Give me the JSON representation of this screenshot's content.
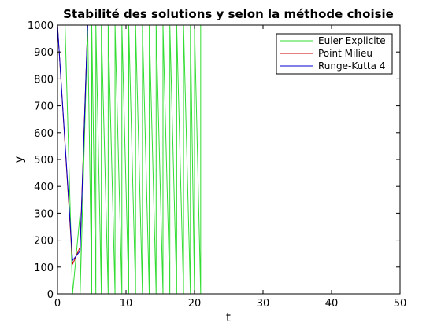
{
  "chart_data": {
    "type": "line",
    "title": "Stabilité des solutions y selon la méthode choisie",
    "xlabel": "t",
    "ylabel": "y",
    "xlim": [
      0,
      50
    ],
    "ylim": [
      0,
      1000
    ],
    "x_ticks": [
      "0",
      "10",
      "20",
      "30",
      "40",
      "50"
    ],
    "y_ticks": [
      "0",
      "100",
      "200",
      "300",
      "400",
      "500",
      "600",
      "700",
      "800",
      "900",
      "1000"
    ],
    "grid": false,
    "legend_position": "top-right",
    "series": [
      {
        "name": "Euler Explicite",
        "color": "#33dd33",
        "x": [
          0,
          1.1,
          2.2,
          3.3,
          3.3,
          4.4,
          5.0,
          5.0,
          5.6,
          5.6,
          6.4,
          6.4,
          7.4,
          7.4,
          8.4,
          8.4,
          9.4,
          9.4,
          10.4,
          10.4,
          11.4,
          11.4,
          12.4,
          12.4,
          13.4,
          13.4,
          14.4,
          14.4,
          15.4,
          15.4,
          16.4,
          16.4,
          17.4,
          17.4,
          18.4,
          18.4,
          19.4,
          19.4,
          20.0,
          20.0,
          20.9,
          20.9
        ],
        "y": [
          1000,
          1000,
          0,
          300,
          0,
          1000,
          0,
          1000,
          0,
          1000,
          0,
          1000,
          0,
          1000,
          0,
          1000,
          0,
          1000,
          0,
          1000,
          0,
          1000,
          0,
          1000,
          0,
          1000,
          0,
          1000,
          0,
          1000,
          0,
          1000,
          0,
          1000,
          0,
          1000,
          0,
          1000,
          0,
          1000,
          0,
          1000
        ]
      },
      {
        "name": "Point Milieu",
        "color": "#cc0000",
        "x": [
          0,
          2.2,
          3.3,
          4.4
        ],
        "y": [
          1000,
          110,
          175,
          1000
        ]
      },
      {
        "name": "Runge-Kutta 4",
        "color": "#0000cc",
        "x": [
          0,
          2.2,
          3.3,
          4.4
        ],
        "y": [
          1000,
          125,
          160,
          1000
        ]
      }
    ]
  }
}
